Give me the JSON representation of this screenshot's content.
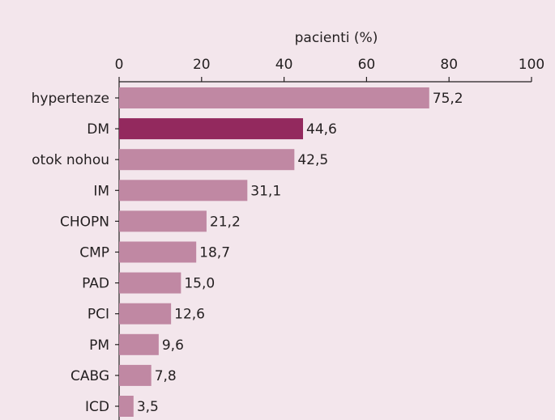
{
  "chart_data": {
    "type": "bar",
    "orientation": "horizontal",
    "x_label": "pacienti (%)",
    "categories": [
      "hypertenze",
      "DM",
      "otok nohou",
      "IM",
      "CHOPN",
      "CMP",
      "PAD",
      "PCI",
      "PM",
      "CABG",
      "ICD"
    ],
    "values": [
      75.2,
      44.6,
      42.5,
      31.1,
      21.2,
      18.7,
      15.0,
      12.6,
      9.6,
      7.8,
      3.5
    ],
    "value_labels": [
      "75,2",
      "44,6",
      "42,5",
      "31,1",
      "21,2",
      "18,7",
      "15,0",
      "12,6",
      "9,6",
      "7,8",
      "3,5"
    ],
    "colors": [
      "#c088a3",
      "#93295e",
      "#c088a3",
      "#c088a3",
      "#c088a3",
      "#c088a3",
      "#c088a3",
      "#c088a3",
      "#c088a3",
      "#c088a3",
      "#c088a3"
    ],
    "xlim": [
      0,
      100
    ],
    "xticks": [
      0,
      20,
      40,
      60,
      80,
      100
    ],
    "grid": false
  }
}
